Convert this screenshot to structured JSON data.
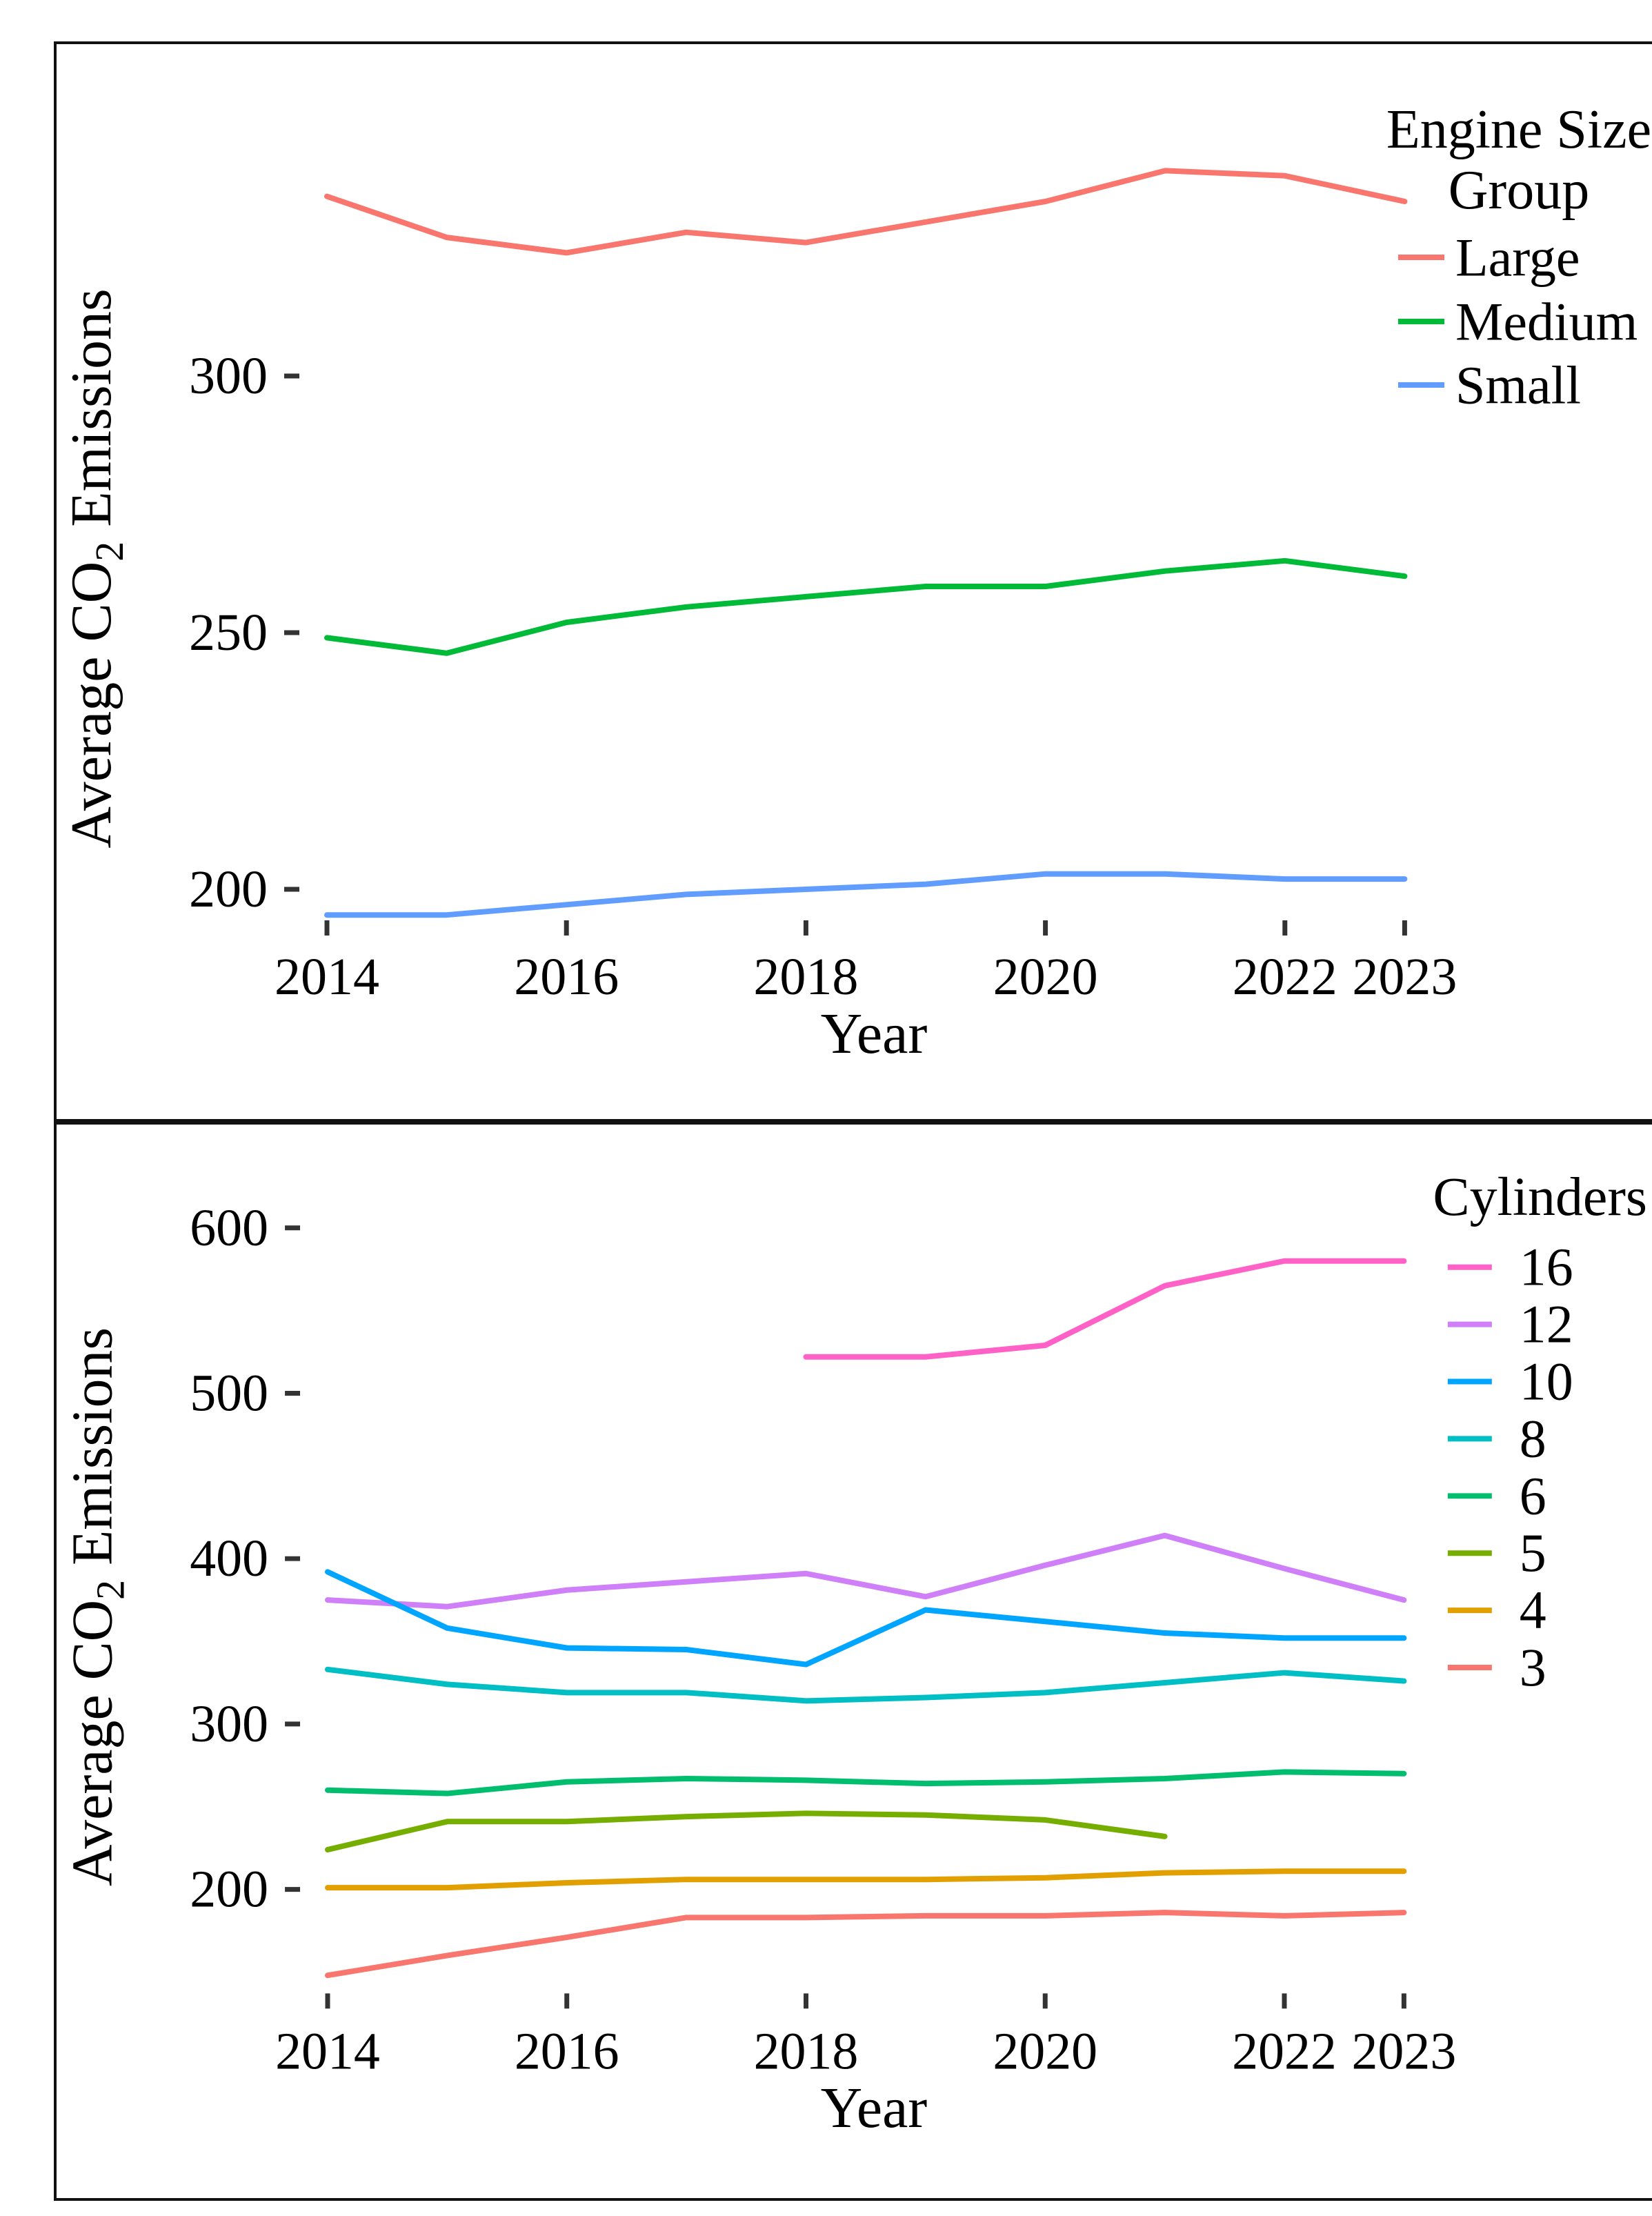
{
  "figure": {
    "background": "#ffffff",
    "border_color": "#111111",
    "tick_color": "#333333"
  },
  "chart_data": [
    {
      "type": "line",
      "title": "",
      "xlabel": "Year",
      "ylabel": "Average CO2 Emissions",
      "ylabel_parts": [
        "Average CO",
        "2",
        " Emissions"
      ],
      "grid": false,
      "legend_position": "right",
      "legend_title": "Engine Size Group",
      "legend_title_lines": [
        "Engine Size",
        "Group"
      ],
      "x": [
        2014,
        2015,
        2016,
        2017,
        2018,
        2019,
        2020,
        2021,
        2022,
        2023
      ],
      "x_ticks": [
        2014,
        2016,
        2018,
        2020,
        2022,
        2023
      ],
      "y_ticks": [
        200,
        250,
        300
      ],
      "ylim": [
        192,
        352
      ],
      "xlim": [
        2014,
        2023
      ],
      "series": [
        {
          "name": "Large",
          "color": "#F8766D",
          "values": [
            335,
            327,
            324,
            328,
            326,
            330,
            334,
            340,
            339,
            334
          ]
        },
        {
          "name": "Medium",
          "color": "#00BA38",
          "values": [
            249,
            246,
            252,
            255,
            257,
            259,
            259,
            262,
            264,
            261
          ]
        },
        {
          "name": "Small",
          "color": "#619CFF",
          "values": [
            195,
            195,
            197,
            199,
            200,
            201,
            203,
            203,
            202,
            202
          ]
        }
      ]
    },
    {
      "type": "line",
      "title": "",
      "xlabel": "Year",
      "ylabel": "Average CO2 Emissions",
      "ylabel_parts": [
        "Average CO",
        "2",
        " Emissions"
      ],
      "grid": false,
      "legend_position": "right",
      "legend_title": "Cylinders",
      "legend_title_lines": [
        "Cylinders"
      ],
      "x": [
        2014,
        2015,
        2016,
        2017,
        2018,
        2019,
        2020,
        2021,
        2022,
        2023
      ],
      "x_ticks": [
        2014,
        2016,
        2018,
        2020,
        2022,
        2023
      ],
      "y_ticks": [
        200,
        300,
        400,
        500,
        600
      ],
      "ylim": [
        135,
        622
      ],
      "xlim": [
        2014,
        2023
      ],
      "series": [
        {
          "name": "16",
          "color": "#FF61C7",
          "values": [
            null,
            null,
            null,
            null,
            522,
            522,
            529,
            565,
            580,
            580
          ]
        },
        {
          "name": "12",
          "color": "#CF7FF7",
          "values": [
            375,
            371,
            381,
            386,
            391,
            377,
            396,
            414,
            394,
            375
          ]
        },
        {
          "name": "10",
          "color": "#00A5FF",
          "values": [
            392,
            358,
            346,
            345,
            336,
            369,
            362,
            355,
            352,
            352
          ]
        },
        {
          "name": "8",
          "color": "#00BFC4",
          "values": [
            333,
            324,
            319,
            319,
            314,
            316,
            319,
            325,
            331,
            326
          ]
        },
        {
          "name": "6",
          "color": "#00BE6E",
          "values": [
            260,
            258,
            265,
            267,
            266,
            264,
            265,
            267,
            271,
            270
          ]
        },
        {
          "name": "5",
          "color": "#76AE00",
          "values": [
            224,
            241,
            241,
            244,
            246,
            245,
            242,
            232,
            null,
            null
          ]
        },
        {
          "name": "4",
          "color": "#E2A000",
          "values": [
            201,
            201,
            204,
            206,
            206,
            206,
            207,
            210,
            211,
            211
          ]
        },
        {
          "name": "3",
          "color": "#F8766D",
          "values": [
            148,
            160,
            171,
            183,
            183,
            184,
            184,
            186,
            184,
            186
          ]
        }
      ]
    }
  ]
}
